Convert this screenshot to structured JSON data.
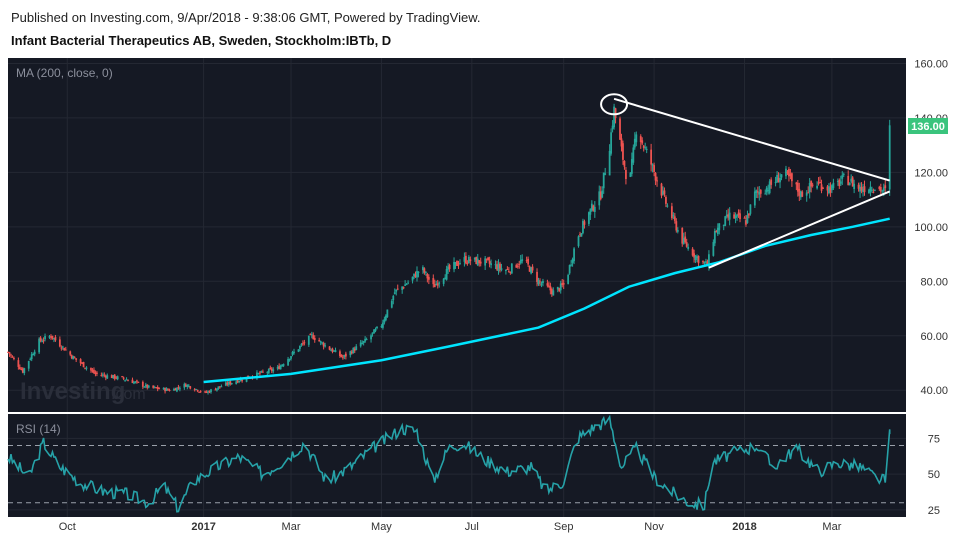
{
  "header": {
    "published": "Published on Investing.com, 9/Apr/2018 - 9:38:06 GMT, Powered by TradingView.",
    "symbol": "Infant Bacterial Therapeutics AB, Sweden, Stockholm:IBTb, D"
  },
  "watermark": {
    "brand": "Investing",
    "suffix": ".com"
  },
  "chart_data": [
    {
      "type": "candlestick",
      "indicator_label": "MA (200, close, 0)",
      "ylim": [
        32,
        162
      ],
      "y_ticks": [
        "160.00",
        "140.00",
        "120.00",
        "100.00",
        "80.00",
        "60.00",
        "40.00"
      ],
      "last_price": "136.00",
      "x_ticks": [
        "Oct",
        "2017",
        "Mar",
        "May",
        "Jul",
        "Sep",
        "Nov",
        "2018",
        "Mar"
      ],
      "x_range": [
        "2016-08-22",
        "2018-04-20"
      ],
      "close_path": [
        [
          "2016-08-22",
          54
        ],
        [
          "2016-09-01",
          47
        ],
        [
          "2016-09-12",
          58
        ],
        [
          "2016-09-20",
          60
        ],
        [
          "2016-10-05",
          52
        ],
        [
          "2016-10-20",
          46
        ],
        [
          "2016-11-10",
          44
        ],
        [
          "2016-11-25",
          41
        ],
        [
          "2016-12-10",
          40
        ],
        [
          "2016-12-20",
          42
        ],
        [
          "2017-01-02",
          39
        ],
        [
          "2017-01-15",
          42
        ],
        [
          "2017-02-01",
          45
        ],
        [
          "2017-02-20",
          48
        ],
        [
          "2017-03-05",
          55
        ],
        [
          "2017-03-15",
          60
        ],
        [
          "2017-03-25",
          56
        ],
        [
          "2017-04-05",
          52
        ],
        [
          "2017-04-20",
          58
        ],
        [
          "2017-05-01",
          64
        ],
        [
          "2017-05-10",
          76
        ],
        [
          "2017-05-20",
          80
        ],
        [
          "2017-05-28",
          85
        ],
        [
          "2017-06-05",
          78
        ],
        [
          "2017-06-15",
          84
        ],
        [
          "2017-06-25",
          88
        ],
        [
          "2017-07-10",
          87
        ],
        [
          "2017-07-25",
          84
        ],
        [
          "2017-08-05",
          88
        ],
        [
          "2017-08-15",
          80
        ],
        [
          "2017-08-25",
          76
        ],
        [
          "2017-09-02",
          79
        ],
        [
          "2017-09-10",
          96
        ],
        [
          "2017-09-18",
          105
        ],
        [
          "2017-09-26",
          112
        ],
        [
          "2017-10-02",
          130
        ],
        [
          "2017-10-05",
          143
        ],
        [
          "2017-10-10",
          128
        ],
        [
          "2017-10-15",
          114
        ],
        [
          "2017-10-20",
          136
        ],
        [
          "2017-10-28",
          126
        ],
        [
          "2017-11-08",
          110
        ],
        [
          "2017-11-20",
          95
        ],
        [
          "2017-12-01",
          88
        ],
        [
          "2017-12-07",
          86
        ],
        [
          "2017-12-12",
          98
        ],
        [
          "2017-12-22",
          104
        ],
        [
          "2018-01-02",
          102
        ],
        [
          "2018-01-08",
          112
        ],
        [
          "2018-01-18",
          115
        ],
        [
          "2018-01-28",
          120
        ],
        [
          "2018-02-08",
          112
        ],
        [
          "2018-02-18",
          116
        ],
        [
          "2018-03-01",
          114
        ],
        [
          "2018-03-10",
          118
        ],
        [
          "2018-03-20",
          114
        ],
        [
          "2018-03-28",
          115
        ],
        [
          "2018-04-06",
          113
        ],
        [
          "2018-04-09",
          136
        ]
      ],
      "ma200": [
        [
          "2017-01-01",
          43
        ],
        [
          "2017-03-01",
          46
        ],
        [
          "2017-05-01",
          51
        ],
        [
          "2017-06-15",
          56
        ],
        [
          "2017-08-15",
          63
        ],
        [
          "2017-09-15",
          70
        ],
        [
          "2017-10-15",
          78
        ],
        [
          "2017-11-15",
          83
        ],
        [
          "2017-12-15",
          87
        ],
        [
          "2018-01-15",
          93
        ],
        [
          "2018-02-15",
          97
        ],
        [
          "2018-03-15",
          100
        ],
        [
          "2018-04-09",
          103
        ]
      ],
      "trend_lines": [
        {
          "from": [
            "2017-10-05",
            147
          ],
          "to": [
            "2018-04-09",
            117
          ]
        },
        {
          "from": [
            "2017-12-08",
            85
          ],
          "to": [
            "2018-04-09",
            113
          ]
        }
      ],
      "peak_marker": [
        "2017-10-05",
        145
      ],
      "colors": {
        "up": "#26a69a",
        "down": "#ef5350",
        "ma": "#00e5ff",
        "background": "#151924",
        "label_bg": "#3ac47d"
      }
    },
    {
      "type": "line",
      "indicator_label": "RSI (14)",
      "ylim": [
        20,
        92
      ],
      "y_ticks": [
        "75",
        "50",
        "25"
      ],
      "bands": [
        70,
        30
      ],
      "rsi": [
        [
          "2016-08-22",
          62
        ],
        [
          "2016-09-05",
          48
        ],
        [
          "2016-09-15",
          72
        ],
        [
          "2016-09-25",
          56
        ],
        [
          "2016-10-10",
          44
        ],
        [
          "2016-10-25",
          38
        ],
        [
          "2016-11-10",
          36
        ],
        [
          "2016-11-25",
          30
        ],
        [
          "2016-12-05",
          42
        ],
        [
          "2016-12-15",
          26
        ],
        [
          "2016-12-25",
          45
        ],
        [
          "2017-01-10",
          55
        ],
        [
          "2017-01-25",
          62
        ],
        [
          "2017-02-10",
          50
        ],
        [
          "2017-02-25",
          60
        ],
        [
          "2017-03-10",
          72
        ],
        [
          "2017-03-25",
          45
        ],
        [
          "2017-04-10",
          55
        ],
        [
          "2017-04-25",
          68
        ],
        [
          "2017-05-05",
          75
        ],
        [
          "2017-05-15",
          82
        ],
        [
          "2017-05-25",
          80
        ],
        [
          "2017-06-05",
          45
        ],
        [
          "2017-06-15",
          68
        ],
        [
          "2017-06-25",
          72
        ],
        [
          "2017-07-10",
          60
        ],
        [
          "2017-07-25",
          52
        ],
        [
          "2017-08-10",
          55
        ],
        [
          "2017-08-20",
          38
        ],
        [
          "2017-09-01",
          45
        ],
        [
          "2017-09-10",
          75
        ],
        [
          "2017-09-20",
          82
        ],
        [
          "2017-10-02",
          88
        ],
        [
          "2017-10-10",
          55
        ],
        [
          "2017-10-20",
          68
        ],
        [
          "2017-11-01",
          48
        ],
        [
          "2017-11-15",
          36
        ],
        [
          "2017-11-25",
          30
        ],
        [
          "2017-12-05",
          28
        ],
        [
          "2017-12-10",
          58
        ],
        [
          "2017-12-25",
          65
        ],
        [
          "2018-01-10",
          70
        ],
        [
          "2018-01-20",
          55
        ],
        [
          "2018-02-05",
          68
        ],
        [
          "2018-02-20",
          52
        ],
        [
          "2018-03-05",
          58
        ],
        [
          "2018-03-20",
          55
        ],
        [
          "2018-03-30",
          48
        ],
        [
          "2018-04-06",
          45
        ],
        [
          "2018-04-09",
          78
        ]
      ],
      "colors": {
        "line": "#26a2a8",
        "background": "#151924"
      }
    }
  ]
}
